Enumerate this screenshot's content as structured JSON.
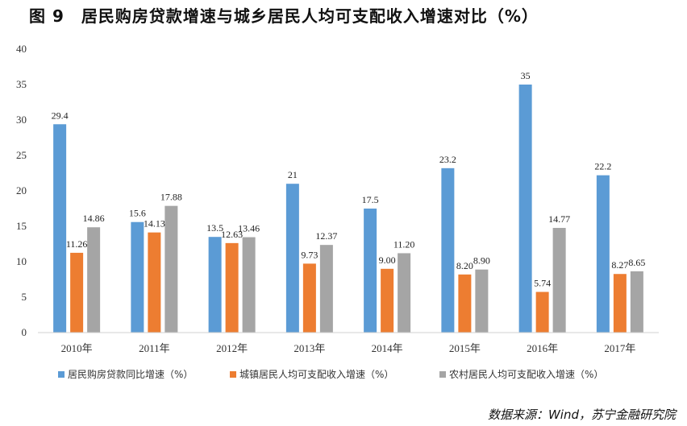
{
  "figure_title": "图 9　居民购房贷款增速与城乡居民人均可支配收入增速对比（%）",
  "source": "数据来源：Wind，苏宁金融研究院",
  "chart_data": {
    "type": "bar",
    "categories": [
      "2010年",
      "2011年",
      "2012年",
      "2013年",
      "2014年",
      "2015年",
      "2016年",
      "2017年"
    ],
    "series": [
      {
        "name": "居民购房贷款同比增速（%）",
        "color": "#5b9bd5",
        "values": [
          29.4,
          15.6,
          13.5,
          21,
          17.5,
          23.2,
          35,
          22.2
        ],
        "labels": [
          "29.4",
          "15.6",
          "13.5",
          "21",
          "17.5",
          "23.2",
          "35",
          "22.2"
        ]
      },
      {
        "name": "城镇居民人均可支配收入增速（%）",
        "color": "#ed7d31",
        "values": [
          11.26,
          14.13,
          12.63,
          9.73,
          9.0,
          8.2,
          5.74,
          8.27
        ],
        "labels": [
          "11.26",
          "14.13",
          "12.63",
          "9.73",
          "9.00",
          "8.20",
          "5.74",
          "8.27"
        ]
      },
      {
        "name": "农村居民人均可支配收入增速（%）",
        "color": "#a5a5a5",
        "values": [
          14.86,
          17.88,
          13.46,
          12.37,
          11.2,
          8.9,
          14.77,
          8.65
        ],
        "labels": [
          "14.86",
          "17.88",
          "13.46",
          "12.37",
          "11.20",
          "8.90",
          "14.77",
          "8.65"
        ]
      }
    ],
    "ylim": [
      0,
      40
    ],
    "yticks": [
      "0",
      "5",
      "10",
      "15",
      "20",
      "25",
      "30",
      "35",
      "40"
    ],
    "ytick_values": [
      0,
      5,
      10,
      15,
      20,
      25,
      30,
      35,
      40
    ],
    "legend_position": "bottom",
    "grid": false
  }
}
